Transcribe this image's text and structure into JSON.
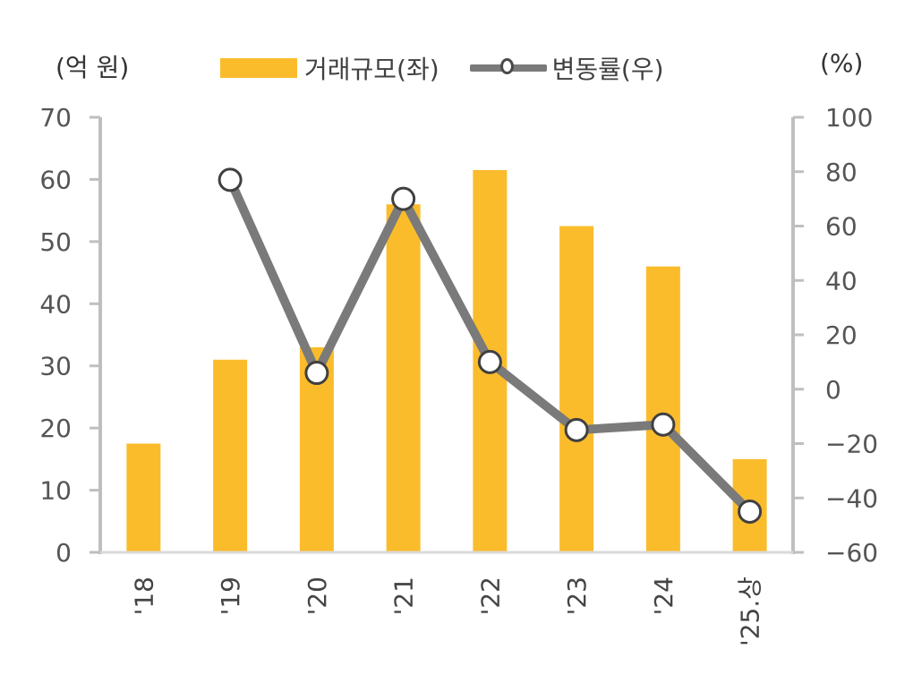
{
  "chart_data": {
    "type": "bar+line",
    "title": "",
    "left_axis_unit": "(억 원)",
    "right_axis_unit": "(%)",
    "categories": [
      "'18",
      "'19",
      "'20",
      "'21",
      "'22",
      "'23",
      "'24",
      "'25.상"
    ],
    "series": [
      {
        "name": "거래규모(좌)",
        "type": "bar",
        "axis": "left",
        "color": "#FBBC2C",
        "values": [
          17.5,
          31,
          33,
          56,
          61.5,
          52.5,
          46,
          15
        ]
      },
      {
        "name": "변동률(우)",
        "type": "line",
        "axis": "right",
        "color": "#7A7A7A",
        "values": [
          null,
          77,
          6,
          70,
          10,
          -15,
          -13,
          -45
        ]
      }
    ],
    "left_ylim": [
      0,
      70
    ],
    "left_ticks": [
      "0",
      "10",
      "20",
      "30",
      "40",
      "50",
      "60",
      "70"
    ],
    "right_ylim": [
      -60,
      100
    ],
    "right_ticks": [
      "−60",
      "−40",
      "−20",
      "0",
      "20",
      "40",
      "60",
      "80",
      "100"
    ],
    "grid": false,
    "legend_position": "top"
  },
  "legend": {
    "bar_label": "거래규모(좌)",
    "line_label": "변동률(우)"
  },
  "units": {
    "left": "(억 원)",
    "right": "(%)"
  }
}
